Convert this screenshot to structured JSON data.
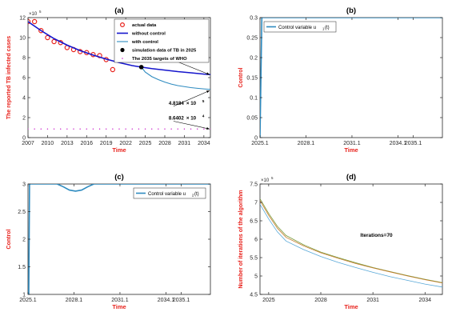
{
  "figure": {
    "background": "#ffffff"
  },
  "chart_data": [
    {
      "id": "a",
      "type": "line",
      "title": "(a)",
      "xlabel": "Time",
      "ylabel": "The reported TB infected cases",
      "y_exponent": "×10",
      "y_exponent_power": "5",
      "xlim": [
        2007,
        2035
      ],
      "ylim": [
        0,
        12
      ],
      "xticks": [
        2007,
        2010,
        2013,
        2016,
        2019,
        2022,
        2025,
        2028,
        2031,
        2034
      ],
      "yticks": [
        0,
        2,
        4,
        6,
        8,
        10,
        12
      ],
      "grid": false,
      "legend_position": "top-right",
      "colors": {
        "actual": "#e8221c",
        "without": "#1515cc",
        "with": "#2e8bc0",
        "sim": "#000000",
        "who": "#cc22cc",
        "label": "#e8221c"
      },
      "series": [
        {
          "name": "actual data",
          "kind": "circles",
          "x": [
            2007,
            2008,
            2009,
            2010,
            2011,
            2012,
            2013,
            2014,
            2015,
            2016,
            2017,
            2018,
            2019,
            2020
          ],
          "y": [
            11.6,
            11.6,
            10.7,
            10.0,
            9.6,
            9.5,
            9.0,
            8.8,
            8.6,
            8.5,
            8.3,
            8.2,
            7.8,
            6.8
          ]
        },
        {
          "name": "without control",
          "kind": "line",
          "x": [
            2007,
            2009,
            2011,
            2013,
            2015,
            2017,
            2019,
            2021,
            2023,
            2024.4,
            2026,
            2028,
            2030,
            2032,
            2034,
            2035
          ],
          "y": [
            11.6,
            10.7,
            9.9,
            9.25,
            8.7,
            8.25,
            7.85,
            7.5,
            7.2,
            7.05,
            6.9,
            6.75,
            6.6,
            6.48,
            6.35,
            6.3
          ]
        },
        {
          "name": "with control",
          "kind": "line",
          "x": [
            2024.4,
            2025,
            2026,
            2027,
            2028,
            2029,
            2030,
            2031,
            2032,
            2033,
            2034,
            2035
          ],
          "y": [
            7.05,
            6.55,
            6.1,
            5.8,
            5.55,
            5.35,
            5.2,
            5.1,
            5.0,
            4.93,
            4.87,
            4.82
          ]
        },
        {
          "name": "simulation data of TB in 2025",
          "kind": "dot",
          "x": [
            2024.4
          ],
          "y": [
            7.05
          ]
        },
        {
          "name": "The 2035 targets of WHO",
          "kind": "dots",
          "x": [
            2007,
            2008,
            2009,
            2010,
            2011,
            2012,
            2013,
            2014,
            2015,
            2016,
            2017,
            2018,
            2019,
            2020,
            2021,
            2022,
            2023,
            2024,
            2025,
            2026,
            2027,
            2028,
            2029,
            2030,
            2031,
            2032,
            2033,
            2034,
            2035
          ],
          "y": [
            0.86,
            0.86,
            0.86,
            0.86,
            0.86,
            0.86,
            0.86,
            0.86,
            0.86,
            0.86,
            0.86,
            0.86,
            0.86,
            0.86,
            0.86,
            0.86,
            0.86,
            0.86,
            0.86,
            0.86,
            0.86,
            0.86,
            0.86,
            0.86,
            0.86,
            0.86,
            0.86,
            0.86,
            0.86
          ]
        }
      ],
      "annotations": [
        {
          "text": "6.2536",
          "exp": "5",
          "x_text": 2029.0,
          "y_text": 7.8,
          "x_to": 2035,
          "y_to": 6.3
        },
        {
          "text": "4.8184",
          "exp": "5",
          "x_text": 2028.6,
          "y_text": 3.3,
          "x_to": 2035,
          "y_to": 4.7
        },
        {
          "text": "8.6402",
          "exp": "4",
          "x_text": 2028.6,
          "y_text": 1.8,
          "x_to": 2035,
          "y_to": 0.86
        }
      ],
      "annotation_prefix": "× 10"
    },
    {
      "id": "b",
      "type": "line",
      "title": "(b)",
      "xlabel": "Time",
      "ylabel": "Control",
      "xlim": [
        2025.1,
        2037.0
      ],
      "ylim": [
        0,
        0.3
      ],
      "xticks": [
        2025.1,
        2028.1,
        2031.1,
        2034.1,
        2035.1
      ],
      "yticks": [
        0,
        0.05,
        0.1,
        0.15,
        0.2,
        0.25,
        0.3
      ],
      "ytick_labels": [
        "0",
        "0.05",
        "0.1",
        "0.15",
        "0.2",
        "0.25",
        "0.3"
      ],
      "grid": false,
      "legend_position": "top-left",
      "legend_label": "Control variable u",
      "legend_sub": "1",
      "legend_suffix": "(t)",
      "colors": {
        "line": "#2e8bc0",
        "label": "#e8221c"
      },
      "series": [
        {
          "name": "Control variable u1(t)",
          "x": [
            2025.1,
            2025.22,
            2025.3,
            2037.0
          ],
          "y": [
            0,
            0.3,
            0.3,
            0.3
          ]
        }
      ]
    },
    {
      "id": "c",
      "type": "line",
      "title": "(c)",
      "xlabel": "Time",
      "ylabel": "Control",
      "xlim": [
        2025.1,
        2037.0
      ],
      "ylim": [
        1,
        3
      ],
      "xticks": [
        2025.1,
        2028.1,
        2031.1,
        2034.1,
        2035.1
      ],
      "yticks": [
        1,
        1.5,
        2,
        2.5,
        3
      ],
      "ytick_labels": [
        "1",
        "1.5",
        "2",
        "2.5",
        "3"
      ],
      "grid": false,
      "legend_position": "top-right",
      "legend_label": "Control variable u",
      "legend_sub": "2",
      "legend_suffix": "(t)",
      "colors": {
        "line": "#2e8bc0",
        "label": "#e8221c"
      },
      "series": [
        {
          "name": "Control variable u2(t)",
          "x": [
            2025.1,
            2025.15,
            2025.2,
            2027.0,
            2027.4,
            2027.8,
            2028.2,
            2028.6,
            2029.0,
            2029.4,
            2037.0
          ],
          "y": [
            1,
            1.0,
            3.0,
            3.0,
            2.95,
            2.89,
            2.87,
            2.89,
            2.95,
            3.0,
            3.0
          ]
        }
      ]
    },
    {
      "id": "d",
      "type": "line",
      "title": "(d)",
      "xlabel": "Time",
      "ylabel": "Number of iterations of the algorithm",
      "y_exponent": "×10",
      "y_exponent_power": "5",
      "xlim": [
        2024.5,
        2035
      ],
      "ylim": [
        4.5,
        7.5
      ],
      "xticks": [
        2025,
        2028,
        2031,
        2034
      ],
      "yticks": [
        4.5,
        5,
        5.5,
        6,
        6.5,
        7,
        7.5
      ],
      "ytick_labels": [
        "4.5",
        "5",
        "5.5",
        "6",
        "6.5",
        "7",
        "7.5"
      ],
      "grid": false,
      "annotation": "Iterations=70",
      "colors": {
        "label": "#e8221c"
      },
      "series": [
        {
          "color": "#7a9a3a",
          "x": [
            2024.5,
            2025,
            2025.5,
            2026,
            2027,
            2028,
            2029,
            2030,
            2031,
            2032,
            2033,
            2034,
            2035
          ],
          "y": [
            7.1,
            6.7,
            6.35,
            6.1,
            5.85,
            5.65,
            5.5,
            5.36,
            5.23,
            5.12,
            5.01,
            4.91,
            4.82
          ]
        },
        {
          "color": "#c57b2a",
          "x": [
            2024.5,
            2025,
            2025.5,
            2026,
            2027,
            2028,
            2029,
            2030,
            2031,
            2032,
            2033,
            2034,
            2035
          ],
          "y": [
            7.05,
            6.65,
            6.3,
            6.05,
            5.82,
            5.63,
            5.48,
            5.34,
            5.22,
            5.11,
            5.0,
            4.9,
            4.81
          ]
        },
        {
          "color": "#58a8d8",
          "x": [
            2024.5,
            2025,
            2025.5,
            2026,
            2027,
            2028,
            2029,
            2030,
            2031,
            2032,
            2033,
            2034,
            2035
          ],
          "y": [
            6.95,
            6.55,
            6.2,
            5.95,
            5.72,
            5.53,
            5.37,
            5.23,
            5.1,
            4.98,
            4.88,
            4.78,
            4.7
          ]
        }
      ]
    }
  ]
}
